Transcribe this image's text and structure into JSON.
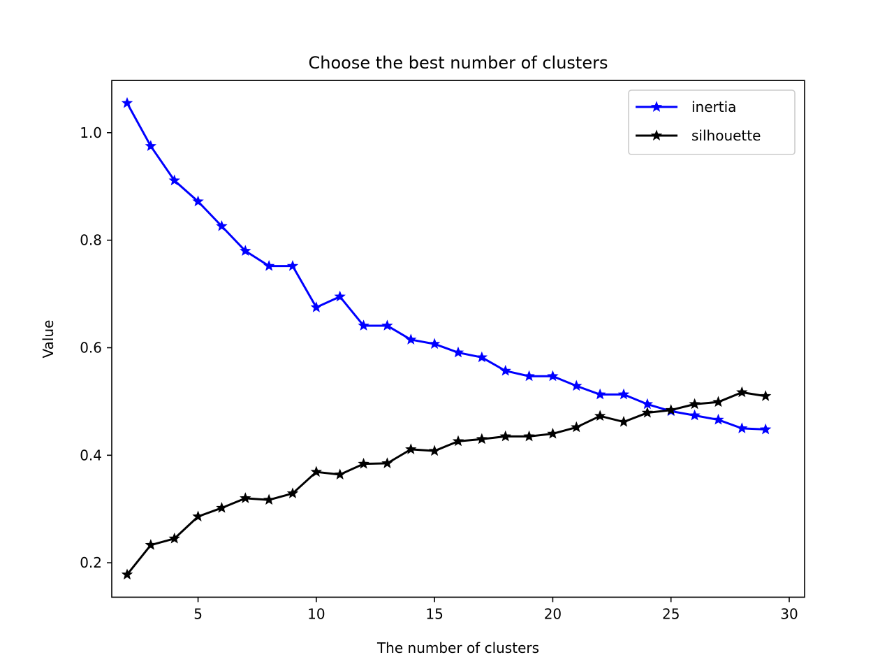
{
  "chart_data": {
    "type": "line",
    "title": "Choose the best number of clusters",
    "xlabel": "The number of clusters",
    "ylabel": "Value",
    "xlim": [
      1.35,
      30.65
    ],
    "ylim": [
      0.136,
      1.097
    ],
    "xticks": [
      5,
      10,
      15,
      20,
      25,
      30
    ],
    "yticks": [
      0.2,
      0.4,
      0.6,
      0.8,
      1.0
    ],
    "xtick_labels": [
      "5",
      "10",
      "15",
      "20",
      "25",
      "30"
    ],
    "ytick_labels": [
      "0.2",
      "0.4",
      "0.6",
      "0.8",
      "1.0"
    ],
    "grid": false,
    "legend_position": "top-right",
    "x": [
      2,
      3,
      4,
      5,
      6,
      7,
      8,
      9,
      10,
      11,
      12,
      13,
      14,
      15,
      16,
      17,
      18,
      19,
      20,
      21,
      22,
      23,
      24,
      25,
      26,
      27,
      28,
      29
    ],
    "series": [
      {
        "name": "inertia",
        "color": "#0000ff",
        "marker": "star",
        "values": [
          1.055,
          0.975,
          0.911,
          0.872,
          0.826,
          0.78,
          0.752,
          0.752,
          0.675,
          0.695,
          0.641,
          0.641,
          0.615,
          0.607,
          0.591,
          0.582,
          0.557,
          0.547,
          0.547,
          0.529,
          0.513,
          0.513,
          0.495,
          0.482,
          0.474,
          0.466,
          0.45,
          0.448
        ]
      },
      {
        "name": "silhouette",
        "color": "#000000",
        "marker": "star",
        "values": [
          0.178,
          0.233,
          0.245,
          0.286,
          0.302,
          0.32,
          0.317,
          0.329,
          0.369,
          0.364,
          0.384,
          0.385,
          0.411,
          0.408,
          0.426,
          0.43,
          0.435,
          0.435,
          0.44,
          0.452,
          0.473,
          0.462,
          0.479,
          0.484,
          0.495,
          0.499,
          0.517,
          0.51
        ]
      }
    ]
  }
}
